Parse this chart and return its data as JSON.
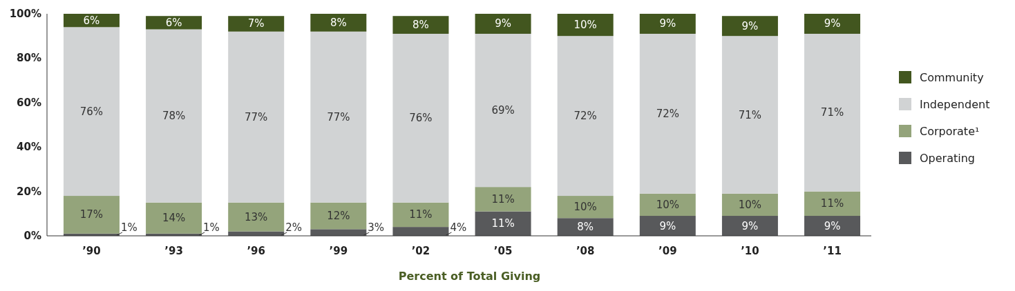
{
  "chart_data": {
    "type": "bar",
    "stacked": true,
    "legend": "right",
    "grid": false,
    "xlabel": "Percent of Total Giving",
    "categories": [
      "’90",
      "’93",
      "’96",
      "’99",
      "’02",
      "’05",
      "’08",
      "’09",
      "’10",
      "’11"
    ],
    "ylim": [
      0,
      100
    ],
    "yticks": [
      {
        "value": 0,
        "label": "0%"
      },
      {
        "value": 20,
        "label": "20%"
      },
      {
        "value": 40,
        "label": "40%"
      },
      {
        "value": 60,
        "label": "60%"
      },
      {
        "value": 80,
        "label": "80%"
      },
      {
        "value": 100,
        "label": "100%"
      }
    ],
    "series": [
      {
        "name": "Operating",
        "color": "#58595b",
        "values": [
          1,
          1,
          2,
          3,
          4,
          11,
          8,
          9,
          9,
          9
        ],
        "value_labels": [
          "1%",
          "1%",
          "2%",
          "3%",
          "4%",
          "11%",
          "8%",
          "9%",
          "9%",
          "9%"
        ]
      },
      {
        "name": "Corporate¹",
        "color": "#94a47b",
        "values": [
          17,
          14,
          13,
          12,
          11,
          11,
          10,
          10,
          10,
          11
        ],
        "value_labels": [
          "17%",
          "14%",
          "13%",
          "12%",
          "11%",
          "11%",
          "10%",
          "10%",
          "10%",
          "11%"
        ]
      },
      {
        "name": "Independent",
        "color": "#d1d3d4",
        "values": [
          76,
          78,
          77,
          77,
          76,
          69,
          72,
          72,
          71,
          71
        ],
        "value_labels": [
          "76%",
          "78%",
          "77%",
          "77%",
          "76%",
          "69%",
          "72%",
          "72%",
          "71%",
          "71%"
        ]
      },
      {
        "name": "Community",
        "color": "#42561f",
        "values": [
          6,
          6,
          7,
          8,
          8,
          9,
          10,
          9,
          9,
          9
        ],
        "value_labels": [
          "6%",
          "6%",
          "7%",
          "8%",
          "8%",
          "9%",
          "10%",
          "9%",
          "9%",
          "9%"
        ]
      }
    ]
  }
}
